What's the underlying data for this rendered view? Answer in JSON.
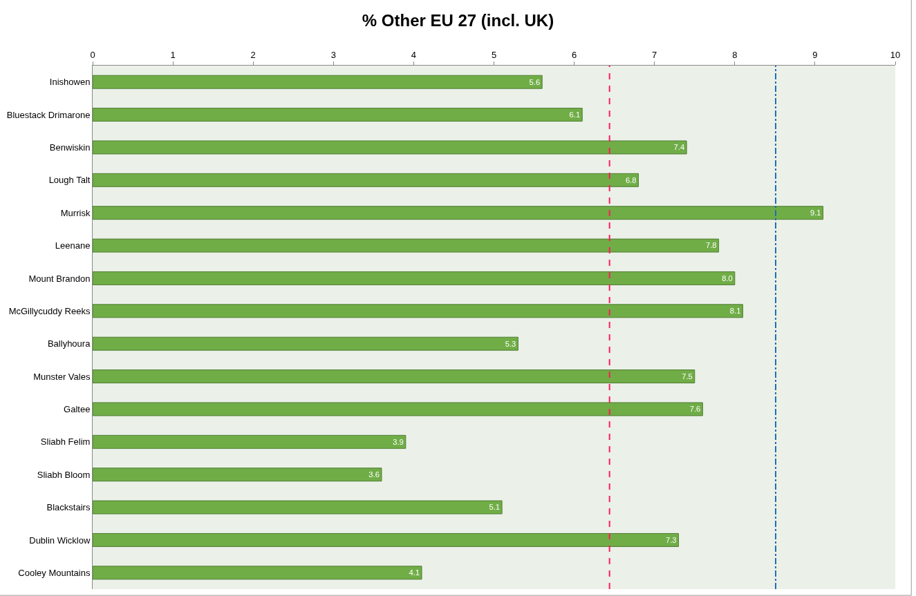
{
  "chart_data": {
    "type": "bar",
    "orientation": "horizontal",
    "title": "% Other EU 27 (incl. UK)",
    "categories": [
      "Inishowen",
      "Bluestack Drimarone",
      "Benwiskin",
      "Lough Talt",
      "Murrisk",
      "Leenane",
      "Mount Brandon",
      "McGillycuddy Reeks",
      "Ballyhoura",
      "Munster Vales",
      "Galtee",
      "Sliabh Felim",
      "Sliabh Bloom",
      "Blackstairs",
      "Dublin Wicklow",
      "Cooley Mountains"
    ],
    "values": [
      5.6,
      6.1,
      7.4,
      6.8,
      9.1,
      7.8,
      8.0,
      8.1,
      5.3,
      7.5,
      7.6,
      3.9,
      3.6,
      5.1,
      7.3,
      4.1
    ],
    "value_labels": [
      "5.6",
      "6.1",
      "7.4",
      "6.8",
      "9.1",
      "7.8",
      "8.0",
      "8.1",
      "5.3",
      "7.5",
      "7.6",
      "3.9",
      "3.6",
      "5.1",
      "7.3",
      "4.1"
    ],
    "color": "#70ad47",
    "xlim": [
      0,
      10
    ],
    "xticks": [
      0,
      1,
      2,
      3,
      4,
      5,
      6,
      7,
      8,
      9,
      10
    ],
    "ref_lines": [
      {
        "axis": "x",
        "value": 6.44,
        "color": "#ff1a5e",
        "line_style": "dashed"
      },
      {
        "axis": "x",
        "value": 8.51,
        "color": "#1f6fb5",
        "line_style": "dashdot"
      }
    ],
    "grid": false,
    "legend": false
  }
}
